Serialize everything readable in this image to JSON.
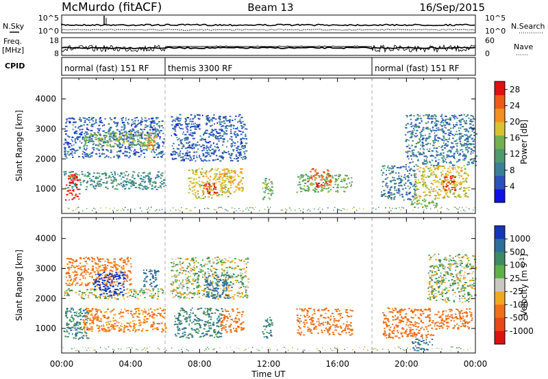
{
  "header": {
    "radar": "McMurdo (fitACF)",
    "beam": "Beam 13",
    "date": "16/Sep/2015"
  },
  "left_labels": {
    "nsky": "N.Sky",
    "freq": "Freq.",
    "freq_unit": "[MHz]",
    "cpid": "CPID"
  },
  "right_labels": {
    "nsearch": "N.Search",
    "nave": "Nave"
  },
  "noise_axis": {
    "left_ticks": [
      "10^5",
      "10^0"
    ],
    "right_ticks": [
      "10^5",
      "10^0"
    ]
  },
  "freq_axis": {
    "left_ticks": [
      "18",
      "8"
    ],
    "right_ticks": [
      "60",
      "0"
    ]
  },
  "cpid_segments": [
    {
      "label": "normal (fast) 151 RF",
      "start_hour": 0,
      "end_hour": 6
    },
    {
      "label": "themis 3300 RF",
      "start_hour": 6,
      "end_hour": 18
    },
    {
      "label": "normal (fast) 151 RF",
      "start_hour": 18,
      "end_hour": 24
    }
  ],
  "chart_data": [
    {
      "type": "heatmap",
      "title": "Power",
      "ylabel": "Slant Range [km]",
      "xlabel": "Time UT",
      "x_ticks": [
        "00:00",
        "04:00",
        "08:00",
        "12:00",
        "16:00",
        "20:00",
        "00:00"
      ],
      "y_ticks": [
        "1000",
        "2000",
        "3000",
        "4000"
      ],
      "xlim_hours": [
        0,
        24
      ],
      "ylim_km": [
        180,
        4700
      ],
      "colorbar": {
        "label": "Power [dB]",
        "ticks": [
          "4",
          "8",
          "12",
          "16",
          "20",
          "24",
          "28"
        ],
        "range": [
          0,
          30
        ]
      },
      "regions": [
        {
          "t": [
            0.1,
            5.9
          ],
          "r": [
            2050,
            3400
          ],
          "level": 6
        },
        {
          "t": [
            0.1,
            6.0
          ],
          "r": [
            1000,
            1600
          ],
          "level": 10
        },
        {
          "t": [
            0.2,
            1.0
          ],
          "r": [
            650,
            1500
          ],
          "level": 28
        },
        {
          "t": [
            1.2,
            5.5
          ],
          "r": [
            2400,
            2900
          ],
          "level": 15
        },
        {
          "t": [
            4.9,
            5.4
          ],
          "r": [
            2300,
            2800
          ],
          "level": 22
        },
        {
          "t": [
            6.3,
            10.7
          ],
          "r": [
            1950,
            3500
          ],
          "level": 6
        },
        {
          "t": [
            7.3,
            9.8
          ],
          "r": [
            700,
            1700
          ],
          "level": 18
        },
        {
          "t": [
            8.2,
            9.0
          ],
          "r": [
            800,
            1200
          ],
          "level": 27
        },
        {
          "t": [
            9.1,
            10.5
          ],
          "r": [
            900,
            1700
          ],
          "level": 20
        },
        {
          "t": [
            11.6,
            12.2
          ],
          "r": [
            650,
            1400
          ],
          "level": 14
        },
        {
          "t": [
            13.6,
            16.8
          ],
          "r": [
            900,
            1500
          ],
          "level": 14
        },
        {
          "t": [
            14.3,
            15.6
          ],
          "r": [
            1100,
            1700
          ],
          "level": 25
        },
        {
          "t": [
            18.5,
            20.5
          ],
          "r": [
            650,
            1800
          ],
          "level": 8
        },
        {
          "t": [
            20.2,
            21.7
          ],
          "r": [
            400,
            700
          ],
          "level": 14
        },
        {
          "t": [
            19.9,
            24.0
          ],
          "r": [
            1800,
            3500
          ],
          "level": 8
        },
        {
          "t": [
            20.4,
            23.6
          ],
          "r": [
            700,
            1800
          ],
          "level": 18
        },
        {
          "t": [
            22.1,
            22.8
          ],
          "r": [
            900,
            1500
          ],
          "level": 27
        }
      ]
    },
    {
      "type": "heatmap",
      "title": "Velocity",
      "ylabel": "Slant Range [km]",
      "xlabel": "Time UT",
      "x_ticks": [
        "00:00",
        "04:00",
        "08:00",
        "12:00",
        "16:00",
        "20:00",
        "00:00"
      ],
      "y_ticks": [
        "1000",
        "2000",
        "3000",
        "4000"
      ],
      "xlim_hours": [
        0,
        24
      ],
      "ylim_km": [
        180,
        4700
      ],
      "colorbar": {
        "label": "Velocity [m s^-1]",
        "ticks": [
          "1000",
          "500",
          "100",
          "25",
          "-25",
          "-100",
          "-500",
          "-1000"
        ]
      },
      "regions": [
        {
          "t": [
            0.1,
            6.0
          ],
          "r": [
            2000,
            2350
          ],
          "level": 0
        },
        {
          "t": [
            0.2,
            4.0
          ],
          "r": [
            2450,
            3400
          ],
          "level": -150
        },
        {
          "t": [
            1.8,
            3.6
          ],
          "r": [
            2100,
            2900
          ],
          "level": 600
        },
        {
          "t": [
            4.7,
            5.6
          ],
          "r": [
            2400,
            3000
          ],
          "level": 400
        },
        {
          "t": [
            0.1,
            1.5
          ],
          "r": [
            650,
            1700
          ],
          "level": 90
        },
        {
          "t": [
            1.2,
            6.0
          ],
          "r": [
            900,
            1700
          ],
          "level": -120
        },
        {
          "t": [
            6.3,
            10.8
          ],
          "r": [
            2000,
            3400
          ],
          "level": 0
        },
        {
          "t": [
            8.3,
            9.7
          ],
          "r": [
            2000,
            2800
          ],
          "level": 300
        },
        {
          "t": [
            6.5,
            9.3
          ],
          "r": [
            700,
            1700
          ],
          "level": 80
        },
        {
          "t": [
            9.2,
            10.5
          ],
          "r": [
            900,
            1700
          ],
          "level": -200
        },
        {
          "t": [
            11.6,
            12.2
          ],
          "r": [
            650,
            1400
          ],
          "level": 90
        },
        {
          "t": [
            13.6,
            16.8
          ],
          "r": [
            800,
            1700
          ],
          "level": -300
        },
        {
          "t": [
            18.6,
            21.5
          ],
          "r": [
            700,
            1700
          ],
          "level": -300
        },
        {
          "t": [
            20.3,
            21.5
          ],
          "r": [
            280,
            700
          ],
          "level": 150
        },
        {
          "t": [
            21.6,
            23.8
          ],
          "r": [
            1000,
            1700
          ],
          "level": -250
        },
        {
          "t": [
            21.2,
            24.0
          ],
          "r": [
            1900,
            3500
          ],
          "level": 0
        }
      ]
    }
  ]
}
